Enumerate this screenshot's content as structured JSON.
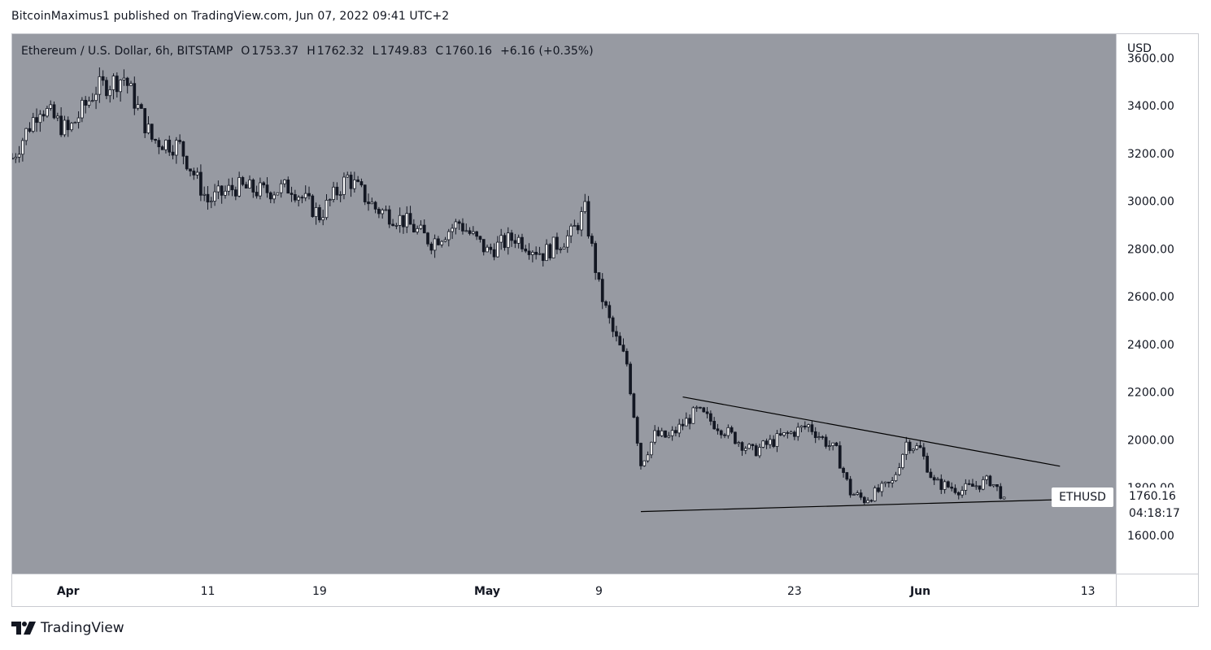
{
  "header": {
    "text": "BitcoinMaximus1 published on TradingView.com, Jun 07, 2022 09:41 UTC+2"
  },
  "legend": {
    "title": "Ethereum / U.S. Dollar, 6h, BITSTAMP",
    "open_key": "O",
    "open": "1753.37",
    "high_key": "H",
    "high": "1762.32",
    "low_key": "L",
    "low": "1749.83",
    "close_key": "C",
    "close": "1760.16",
    "change": "+6.16 (+0.35%)"
  },
  "price_scale": {
    "currency": "USD"
  },
  "last_price": {
    "symbol": "ETHUSD",
    "price": "1760.16",
    "countdown": "04:18:17"
  },
  "footer": {
    "brand": "TradingView"
  },
  "colors": {
    "plot_bg": "#979aa2",
    "candle": "#ffffff",
    "candle_outline": "#131722",
    "trendline": "#000000",
    "axis_text": "#131722",
    "axis_bg": "#ffffff"
  },
  "chart_data": {
    "type": "candlestick",
    "interval": "6h",
    "y_ticks": [
      "1600.00",
      "1800.00",
      "2000.00",
      "2200.00",
      "2400.00",
      "2600.00",
      "2800.00",
      "3000.00",
      "3200.00",
      "3400.00",
      "3600.00"
    ],
    "x_ticks": [
      {
        "label": "Apr",
        "date": "2022-04-01"
      },
      {
        "label": "11",
        "date": "2022-04-11"
      },
      {
        "label": "19",
        "date": "2022-04-19"
      },
      {
        "label": "May",
        "date": "2022-05-01"
      },
      {
        "label": "9",
        "date": "2022-05-09"
      },
      {
        "label": "23",
        "date": "2022-05-23"
      },
      {
        "label": "Jun",
        "date": "2022-06-01"
      },
      {
        "label": "13",
        "date": "2022-06-13"
      }
    ],
    "x_range": [
      "2022-03-28",
      "2022-06-15"
    ],
    "y_range": [
      1440,
      3700
    ],
    "price_path": [
      [
        "2022-03-28",
        3180
      ],
      [
        "2022-03-30",
        3400
      ],
      [
        "2022-04-01",
        3290
      ],
      [
        "2022-04-03",
        3470
      ],
      [
        "2022-04-05",
        3520
      ],
      [
        "2022-04-07",
        3260
      ],
      [
        "2022-04-09",
        3230
      ],
      [
        "2022-04-11",
        3000
      ],
      [
        "2022-04-13",
        3060
      ],
      [
        "2022-04-15",
        3040
      ],
      [
        "2022-04-17",
        3060
      ],
      [
        "2022-04-19",
        2940
      ],
      [
        "2022-04-21",
        3100
      ],
      [
        "2022-04-23",
        2970
      ],
      [
        "2022-04-25",
        2920
      ],
      [
        "2022-04-27",
        2830
      ],
      [
        "2022-04-29",
        2910
      ],
      [
        "2022-05-01",
        2790
      ],
      [
        "2022-05-03",
        2850
      ],
      [
        "2022-05-05",
        2780
      ],
      [
        "2022-05-07",
        2860
      ],
      [
        "2022-05-08",
        2960
      ],
      [
        "2022-05-09",
        2640
      ],
      [
        "2022-05-10",
        2450
      ],
      [
        "2022-05-11",
        2320
      ],
      [
        "2022-05-12",
        1900
      ],
      [
        "2022-05-13",
        2020
      ],
      [
        "2022-05-14",
        2010
      ],
      [
        "2022-05-16",
        2120
      ],
      [
        "2022-05-18",
        2040
      ],
      [
        "2022-05-20",
        1950
      ],
      [
        "2022-05-22",
        2010
      ],
      [
        "2022-05-24",
        2060
      ],
      [
        "2022-05-26",
        1950
      ],
      [
        "2022-05-27",
        1780
      ],
      [
        "2022-05-28",
        1750
      ],
      [
        "2022-05-30",
        1820
      ],
      [
        "2022-05-31",
        1990
      ],
      [
        "2022-06-01",
        1960
      ],
      [
        "2022-06-02",
        1820
      ],
      [
        "2022-06-04",
        1790
      ],
      [
        "2022-06-06",
        1830
      ],
      [
        "2022-06-07",
        1760
      ]
    ],
    "trendlines": [
      {
        "start": [
          "2022-05-15",
          2180
        ],
        "end": [
          "2022-06-11",
          1890
        ]
      },
      {
        "start": [
          "2022-05-12",
          1700
        ],
        "end": [
          "2022-06-11",
          1750
        ]
      }
    ]
  }
}
